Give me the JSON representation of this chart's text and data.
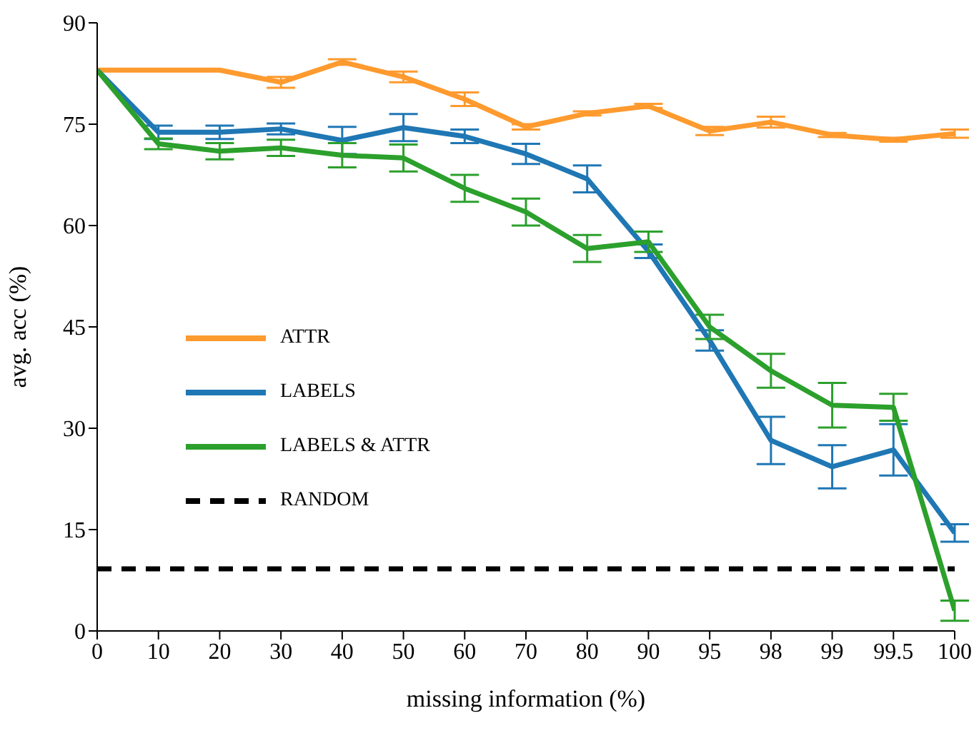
{
  "chart_data": {
    "type": "line",
    "xlabel": "missing information (%)",
    "ylabel": "avg. acc (%)",
    "categories": [
      "0",
      "10",
      "20",
      "30",
      "40",
      "50",
      "60",
      "70",
      "80",
      "90",
      "95",
      "98",
      "99",
      "99.5",
      "100"
    ],
    "ylim": [
      0,
      90
    ],
    "yticks": [
      0,
      15,
      30,
      45,
      60,
      75,
      90
    ],
    "grid": false,
    "legend": "left",
    "marker": "none",
    "series": [
      {
        "name": "ATTR",
        "color": "#fe9a2e",
        "values": [
          83,
          83,
          83,
          81.2,
          84.2,
          82,
          78.7,
          74.6,
          76.6,
          77.7,
          74,
          75.3,
          73.4,
          72.7,
          73.6
        ],
        "errors": [
          null,
          null,
          null,
          0.8,
          0.4,
          0.8,
          1,
          0.4,
          0.3,
          0.3,
          0.6,
          0.8,
          0.3,
          0.3,
          0.6
        ]
      },
      {
        "name": "LABELS",
        "color": "#1f77b4",
        "values": [
          83,
          73.8,
          73.8,
          74.3,
          72.6,
          74.5,
          73.2,
          70.6,
          66.9,
          56.2,
          43,
          28.2,
          24.3,
          26.8,
          14.5
        ],
        "errors": [
          null,
          1,
          1,
          0.8,
          2,
          2,
          1,
          1.5,
          2,
          1,
          1.5,
          3.5,
          3.2,
          3.8,
          1.3
        ]
      },
      {
        "name": "LABELS & ATTR",
        "color": "#2ca02c",
        "values": [
          83,
          72.1,
          71,
          71.5,
          70.4,
          70,
          65.5,
          62,
          56.6,
          57.6,
          45,
          38.5,
          33.4,
          33.1,
          3
        ],
        "errors": [
          null,
          0.8,
          1.2,
          1.2,
          1.8,
          2,
          2,
          2,
          2,
          1.5,
          1.8,
          2.5,
          3.3,
          2,
          1.5
        ]
      },
      {
        "name": "RANDOM",
        "color": "#000000",
        "line_style": "dashed",
        "values": [
          9.2,
          9.2,
          9.2,
          9.2,
          9.2,
          9.2,
          9.2,
          9.2,
          9.2,
          9.2,
          9.2,
          9.2,
          9.2,
          9.2,
          9.2
        ]
      }
    ]
  }
}
